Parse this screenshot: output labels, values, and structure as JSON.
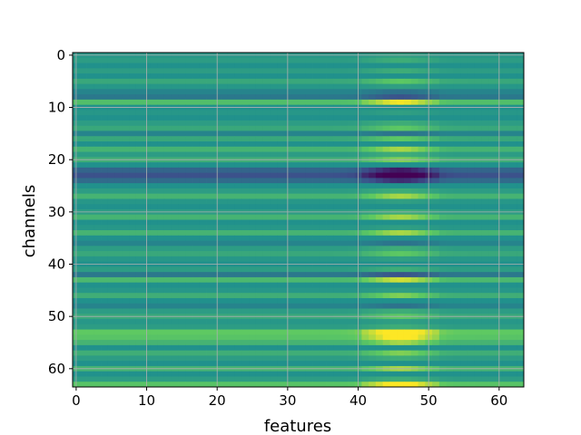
{
  "chart_data": {
    "type": "heatmap",
    "title": "",
    "xlabel": "features",
    "ylabel": "channels",
    "n_cols": 64,
    "n_rows": 64,
    "xlim": [
      -0.5,
      63.5
    ],
    "ylim": [
      63.5,
      -0.5
    ],
    "x_ticks": [
      0,
      10,
      20,
      30,
      40,
      50,
      60
    ],
    "y_ticks": [
      0,
      10,
      20,
      30,
      40,
      50,
      60
    ],
    "grid": true,
    "colormap": "viridis",
    "vmin": -1.0,
    "vmax": 1.0,
    "approx_row_base_values": [
      0.05,
      0.1,
      0.0,
      0.1,
      0.0,
      0.2,
      0.05,
      -0.1,
      -0.2,
      0.4,
      0.0,
      0.05,
      0.0,
      0.1,
      0.2,
      -0.1,
      0.2,
      0.0,
      0.3,
      0.1,
      0.25,
      0.0,
      -0.35,
      -0.5,
      -0.3,
      0.0,
      0.1,
      0.3,
      0.05,
      0.0,
      0.1,
      0.3,
      0.0,
      0.05,
      0.3,
      0.0,
      -0.1,
      0.1,
      0.2,
      0.05,
      0.0,
      0.1,
      -0.2,
      0.35,
      0.0,
      0.05,
      0.25,
      0.0,
      -0.1,
      0.1,
      0.2,
      0.05,
      0.1,
      0.5,
      0.45,
      0.3,
      0.0,
      0.25,
      0.1,
      0.0,
      0.3,
      0.0,
      0.1,
      0.45
    ],
    "approx_column_emphasis": {
      "center_feature": 46,
      "width_features": 4,
      "strength": 1.2
    }
  }
}
